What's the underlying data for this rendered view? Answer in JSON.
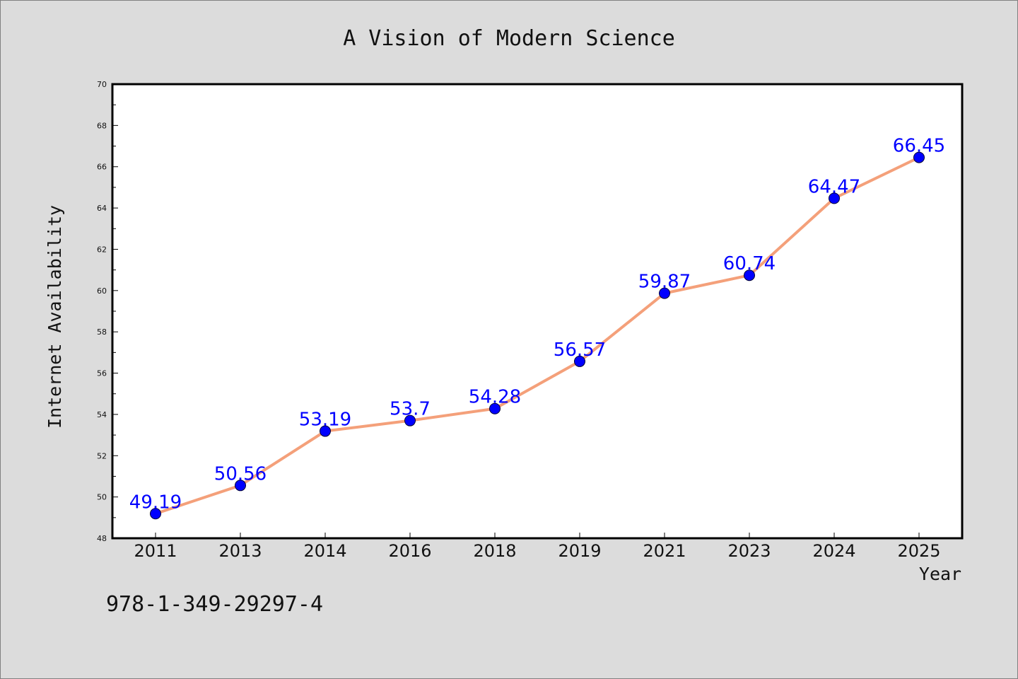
{
  "isbn": "978-1-349-29297-4",
  "chart_data": {
    "type": "line",
    "title": "A Vision of Modern Science",
    "xlabel": "Year",
    "ylabel": "Internet Availability",
    "categories": [
      "2011",
      "2013",
      "2014",
      "2016",
      "2018",
      "2019",
      "2021",
      "2023",
      "2024",
      "2025"
    ],
    "series": [
      {
        "values": [
          49.19,
          50.56,
          53.19,
          53.7,
          54.28,
          56.57,
          59.87,
          60.74,
          64.47,
          66.45
        ],
        "labels": [
          "49.19",
          "50.56",
          "53.19",
          "53.7",
          "54.28",
          "56.57",
          "59.87",
          "60.74",
          "64.47",
          "66.45"
        ]
      }
    ],
    "ylim": [
      48,
      70
    ],
    "yticks": [
      "48",
      "50",
      "52",
      "54",
      "56",
      "58",
      "60",
      "62",
      "64",
      "66",
      "68",
      "70"
    ],
    "grid": false,
    "legend": "none",
    "colors": {
      "line": "#f4a07a",
      "marker": "#0000ff",
      "label": "#0000ff",
      "background": "#dcdcdc",
      "plot_background": "#ffffff"
    }
  }
}
